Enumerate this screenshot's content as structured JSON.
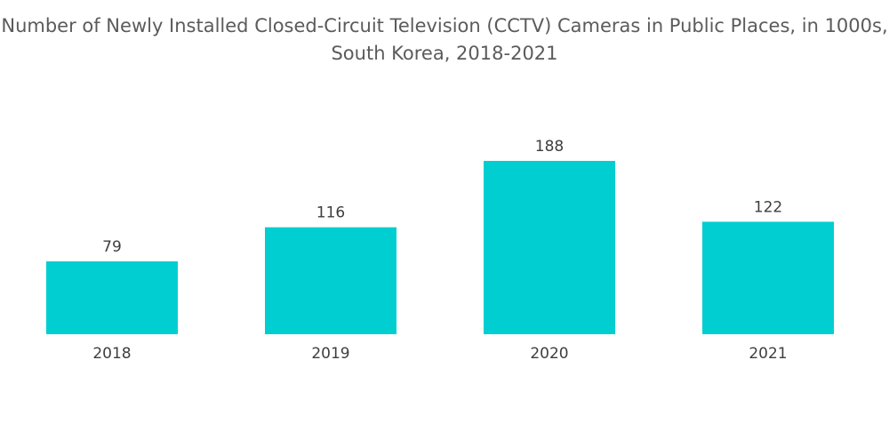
{
  "chart_data": {
    "type": "bar",
    "title": "Number of Newly Installed Closed-Circuit Television (CCTV) Cameras in Public Places, in 1000s, South Korea, 2018-2021",
    "categories": [
      "2018",
      "2019",
      "2020",
      "2021"
    ],
    "values": [
      79,
      116,
      188,
      122
    ],
    "xlabel": "",
    "ylabel": "",
    "ylim": [
      0,
      188
    ],
    "grid": false,
    "legend": "none",
    "bar_color": "#00ced1"
  }
}
